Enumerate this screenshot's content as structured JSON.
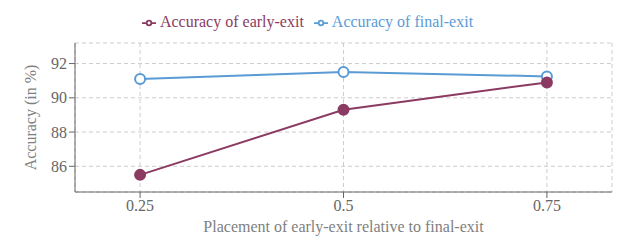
{
  "chart_data": {
    "type": "line",
    "x": [
      0.25,
      0.5,
      0.75
    ],
    "series": [
      {
        "name": "Accuracy of final-exit",
        "color": "#5B9BD5",
        "marker": "open_circle",
        "values": [
          91.1,
          91.5,
          91.25
        ]
      },
      {
        "name": "Accuracy of early-exit",
        "color": "#8B3A62",
        "marker": "circle",
        "values": [
          85.5,
          89.3,
          90.9
        ]
      }
    ],
    "xlabel": "Placement of early-exit relative to final-exit",
    "ylabel": "Accuracy (in %)",
    "xlim": [
      0.17,
      0.83
    ],
    "ylim": [
      84.5,
      93.2
    ],
    "xticks": [
      0.25,
      0.5,
      0.75
    ],
    "yticks": [
      86,
      88,
      90,
      92
    ],
    "grid": true,
    "legend": "top"
  }
}
